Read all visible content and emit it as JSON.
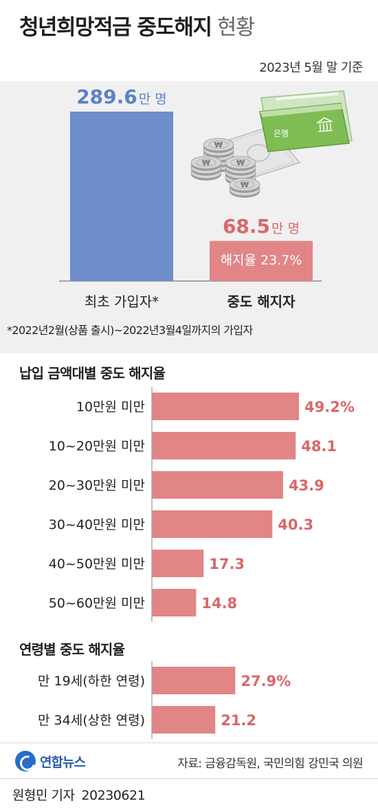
{
  "header": {
    "title_bold": "청년희망적금 중도해지",
    "title_light": "현황",
    "basis": "2023년 5월 말 기준"
  },
  "colors": {
    "blue_bar": "#6d8ecb",
    "red_bar": "#e28587",
    "blue_text": "#5b83c6",
    "red_text": "#d9676a"
  },
  "chart_data": [
    {
      "type": "bar",
      "categories": [
        "최초 가입자*",
        "중도 해지자"
      ],
      "values": [
        289.6,
        68.5
      ],
      "value_labels": [
        "289.6",
        "68.5"
      ],
      "unit": "만 명",
      "annotation": "해지율 23.7%"
    },
    {
      "type": "bar",
      "orientation": "horizontal",
      "title": "납입 금액대별 중도 해지율",
      "categories": [
        "10만원 미만",
        "10~20만원 미만",
        "20~30만원 미만",
        "30~40만원 미만",
        "40~50만원 미만",
        "50~60만원 미만"
      ],
      "values": [
        49.2,
        48.1,
        43.9,
        40.3,
        17.3,
        14.8
      ],
      "value_labels": [
        "49.2%",
        "48.1",
        "43.9",
        "40.3",
        "17.3",
        "14.8"
      ]
    },
    {
      "type": "bar",
      "orientation": "horizontal",
      "title": "연령별 중도 해지율",
      "categories": [
        "만 19세(하한 연령)",
        "만 34세(상한 연령)"
      ],
      "values": [
        27.9,
        21.2
      ],
      "value_labels": [
        "27.9%",
        "21.2"
      ]
    }
  ],
  "illustration": {
    "bankbook_label": "은행",
    "coin_symbol": "₩",
    "icons": [
      "bankbook-icon",
      "coin-stack-icon",
      "banknote-icon",
      "bank-building-icon"
    ]
  },
  "footnote": "*2022년2월(상품 출시)~2022년3월4일까지의 가입자",
  "footer": {
    "logo_text": "연합뉴스",
    "source": "자료: 금융감독원, 국민의힘 강민국 의원",
    "reporter": "원형민 기자",
    "date": "20230621"
  }
}
